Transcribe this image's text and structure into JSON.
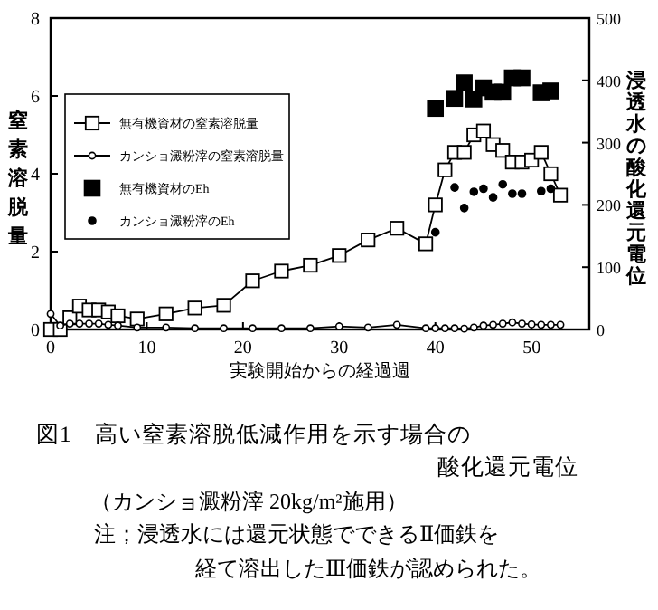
{
  "chart_data": {
    "type": "line",
    "title": "図1　高い窒素溶脱低減作用を示す場合の",
    "subtitle": "酸化還元電位",
    "xlabel": "実験開始からの経過週",
    "ylabel": "窒素溶脱量",
    "y2label": "浸透水の酸化還元電位",
    "annotations": [
      "（カンショ澱粉滓 20kg/m²施用）",
      "注；浸透水には還元状態でできるⅡ価鉄を",
      "経て溶出したⅢ価鉄が認められた。"
    ],
    "xlim": [
      0,
      56
    ],
    "xticks": [
      0,
      10,
      20,
      30,
      40,
      50
    ],
    "ylim": [
      0,
      8
    ],
    "yticks": [
      0,
      2,
      4,
      6,
      8
    ],
    "y2lim": [
      0,
      500
    ],
    "y2ticks": [
      0,
      100,
      200,
      300,
      400,
      500
    ],
    "legend": "left",
    "grid": false,
    "series": [
      {
        "name": "無有機資材の窒素溶脱量",
        "marker": "square",
        "color": "#000000",
        "x": [
          0,
          1,
          2,
          3,
          4,
          5,
          6,
          7,
          9,
          12,
          15,
          18,
          21,
          24,
          27,
          30,
          33,
          36,
          39,
          40,
          41,
          42,
          43,
          44,
          45,
          46,
          47,
          48,
          49,
          50,
          51,
          52,
          53
        ],
        "values": [
          0,
          0,
          0.3,
          0.6,
          0.5,
          0.5,
          0.45,
          0.35,
          0.27,
          0.4,
          0.55,
          0.62,
          1.25,
          1.5,
          1.65,
          1.9,
          2.3,
          2.6,
          2.2,
          3.2,
          4.1,
          4.55,
          4.55,
          5.0,
          5.1,
          4.75,
          4.6,
          4.3,
          4.3,
          4.35,
          4.55,
          4.0,
          3.45
        ]
      },
      {
        "name": "カンショ澱粉滓の窒素溶脱量",
        "marker": "circle",
        "color": "#000000",
        "x": [
          0,
          1,
          2,
          3,
          4,
          5,
          6,
          7,
          9,
          12,
          15,
          18,
          21,
          24,
          27,
          30,
          33,
          36,
          39,
          40,
          41,
          42,
          43,
          44,
          45,
          46,
          47,
          48,
          49,
          50,
          51,
          52,
          53
        ],
        "values": [
          0.4,
          0.1,
          0.15,
          0.15,
          0.15,
          0.15,
          0.12,
          0.1,
          0.05,
          0.05,
          0.03,
          0.03,
          0.03,
          0.03,
          0.03,
          0.08,
          0.05,
          0.12,
          0.03,
          0.03,
          0.03,
          0.03,
          0.02,
          0.05,
          0.1,
          0.12,
          0.15,
          0.18,
          0.15,
          0.13,
          0.12,
          0.12,
          0.12
        ]
      },
      {
        "name": "無有機資材のEh",
        "type": "scatter",
        "marker": "square",
        "axis": "y2",
        "color": "#000000",
        "x": [
          40,
          42,
          43,
          44,
          45,
          46,
          47,
          48,
          49,
          51,
          52
        ],
        "values": [
          355,
          371,
          396,
          370,
          388,
          381,
          381,
          404,
          404,
          380,
          383
        ]
      },
      {
        "name": "カンショ澱粉滓のEh",
        "type": "scatter",
        "marker": "circle",
        "axis": "y2",
        "color": "#000000",
        "x": [
          40,
          42,
          43,
          44,
          45,
          46,
          47,
          48,
          49,
          51,
          52
        ],
        "values": [
          156,
          228,
          195,
          221,
          226,
          212,
          233,
          218,
          218,
          222,
          226
        ]
      }
    ]
  }
}
